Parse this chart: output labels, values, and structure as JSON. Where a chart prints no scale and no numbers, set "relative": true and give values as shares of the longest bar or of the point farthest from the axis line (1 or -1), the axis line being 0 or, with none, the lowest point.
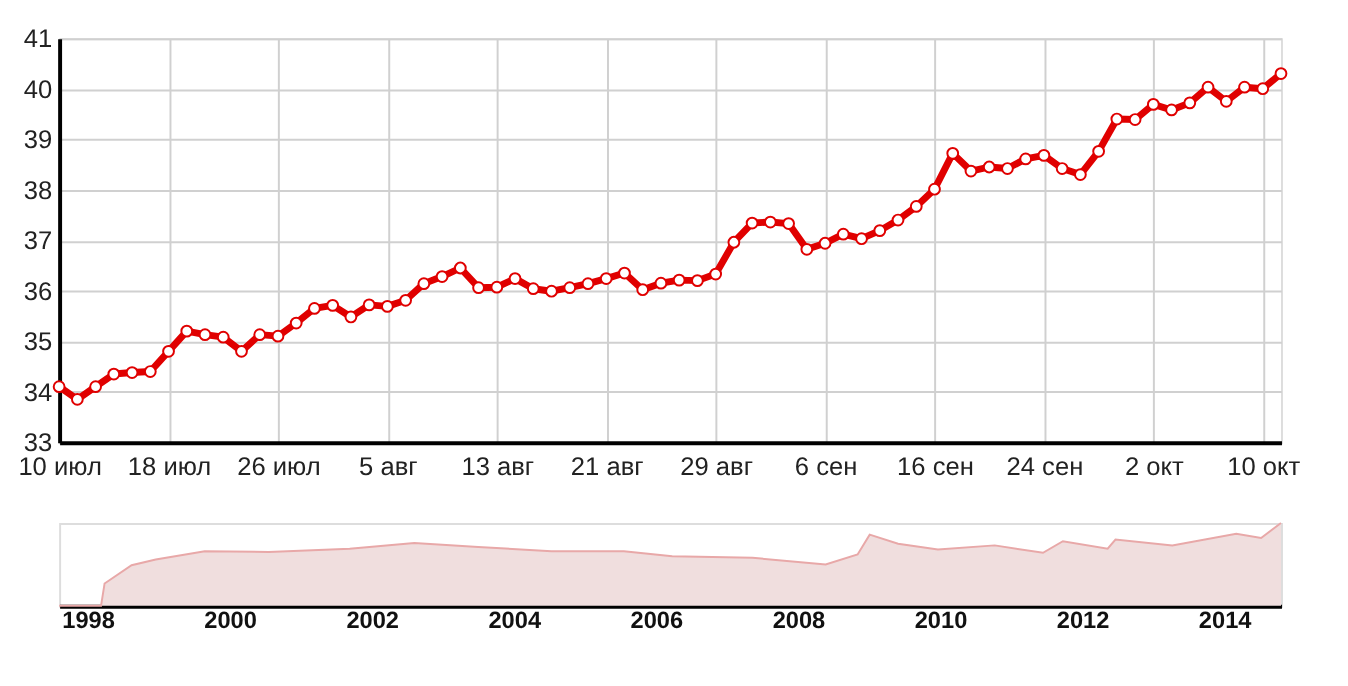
{
  "chart_data": [
    {
      "type": "line",
      "categories": [
        "10 июл",
        null,
        null,
        null,
        null,
        null,
        "18 июл",
        null,
        null,
        null,
        null,
        null,
        "26 июл",
        null,
        null,
        null,
        null,
        null,
        "5 авг",
        null,
        null,
        null,
        null,
        null,
        "13 авг",
        null,
        null,
        null,
        null,
        null,
        "21 авг",
        null,
        null,
        null,
        null,
        null,
        "29 авг",
        null,
        null,
        null,
        null,
        null,
        "6 сен",
        null,
        null,
        null,
        null,
        null,
        "16 сен",
        null,
        null,
        null,
        null,
        null,
        "24 сен",
        null,
        null,
        null,
        null,
        null,
        "2 окт",
        null,
        null,
        null,
        null,
        null,
        "10 окт",
        null
      ],
      "series": [
        {
          "color": "#e00000",
          "values": [
            34.1,
            33.85,
            34.1,
            34.35,
            34.38,
            34.4,
            34.8,
            35.2,
            35.13,
            35.08,
            34.8,
            35.13,
            35.1,
            35.36,
            35.65,
            35.71,
            35.48,
            35.72,
            35.69,
            35.81,
            36.14,
            36.28,
            36.45,
            36.06,
            36.07,
            36.24,
            36.04,
            35.99,
            36.06,
            36.14,
            36.24,
            36.35,
            36.02,
            36.15,
            36.21,
            36.2,
            36.33,
            36.96,
            37.34,
            37.36,
            37.33,
            36.82,
            36.94,
            37.12,
            37.03,
            37.19,
            37.4,
            37.67,
            38.01,
            38.72,
            38.37,
            38.45,
            38.42,
            38.61,
            38.68,
            38.42,
            38.3,
            38.76,
            39.4,
            39.39,
            39.69,
            39.58,
            39.72,
            40.03,
            39.75,
            40.03,
            40.0,
            40.3
          ]
        }
      ],
      "ylim": [
        33,
        41
      ],
      "yticks": [
        33,
        34,
        35,
        36,
        37,
        38,
        39,
        40,
        41
      ],
      "grid": true,
      "marker": "circle",
      "line_style": "solid"
    },
    {
      "type": "area",
      "relative": true,
      "x": [
        1997.6,
        1998.19,
        1998.24,
        1998.62,
        1998.96,
        1999.65,
        2000.55,
        2001.69,
        2002.6,
        2003.5,
        2004.53,
        2005.55,
        2006.23,
        2007.36,
        2008.39,
        2008.84,
        2009.01,
        2009.41,
        2009.97,
        2010.77,
        2011.45,
        2011.73,
        2012.36,
        2012.47,
        2013.27,
        2014.17,
        2014.52,
        2014.8
      ],
      "series": [
        {
          "color": "#e8a8a8",
          "values": [
            0,
            0,
            0.27,
            0.49,
            0.56,
            0.66,
            0.65,
            0.69,
            0.76,
            0.71,
            0.66,
            0.66,
            0.6,
            0.58,
            0.5,
            0.62,
            0.86,
            0.75,
            0.68,
            0.73,
            0.64,
            0.78,
            0.69,
            0.8,
            0.73,
            0.87,
            0.82,
            1.0
          ]
        }
      ],
      "xlim": [
        1997.6,
        2014.8
      ],
      "xticks": [
        1998,
        2000,
        2002,
        2004,
        2006,
        2008,
        2010,
        2012,
        2014
      ],
      "grid": false
    }
  ]
}
